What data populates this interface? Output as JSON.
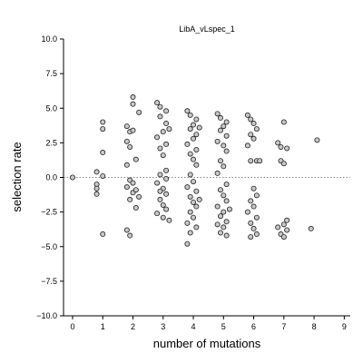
{
  "chart_data": {
    "type": "scatter",
    "title": "LibA_vLspec_1",
    "xlabel": "number of mutations",
    "ylabel": "selection rate",
    "xlim": [
      -0.3,
      9.2
    ],
    "ylim": [
      -10.0,
      10.0
    ],
    "x_ticks": [
      "0",
      "1",
      "2",
      "3",
      "4",
      "5",
      "6",
      "7",
      "8",
      "9"
    ],
    "y_ticks": [
      "10.0",
      "7.5",
      "5.0",
      "2.5",
      "0.0",
      "−2.5",
      "−5.0",
      "−7.5",
      "−10.0"
    ],
    "reference_line": {
      "y": 0.0,
      "style": "dotted",
      "color": "#888888"
    },
    "marker": {
      "fill": "#c8c8c8",
      "edge": "#222222"
    },
    "series": [
      {
        "points": [
          [
            0.0,
            0.0
          ],
          [
            0.8,
            0.4
          ],
          [
            0.8,
            -0.5
          ],
          [
            0.8,
            -0.8
          ],
          [
            0.8,
            -1.2
          ],
          [
            1.0,
            1.8
          ],
          [
            1.0,
            3.5
          ],
          [
            1.0,
            4.0
          ],
          [
            1.0,
            0.1
          ],
          [
            1.0,
            -4.1
          ],
          [
            1.8,
            3.7
          ],
          [
            1.9,
            3.3
          ],
          [
            1.8,
            2.6
          ],
          [
            1.9,
            2.2
          ],
          [
            1.8,
            0.9
          ],
          [
            2.0,
            5.8
          ],
          [
            2.0,
            5.3
          ],
          [
            2.2,
            4.7
          ],
          [
            2.0,
            3.4
          ],
          [
            2.1,
            1.3
          ],
          [
            1.9,
            -0.2
          ],
          [
            2.0,
            -0.4
          ],
          [
            1.8,
            -0.7
          ],
          [
            2.0,
            -1.1
          ],
          [
            1.9,
            -1.6
          ],
          [
            2.1,
            -2.2
          ],
          [
            1.8,
            -3.8
          ],
          [
            1.9,
            -4.2
          ],
          [
            2.1,
            -0.9
          ],
          [
            2.2,
            -1.4
          ],
          [
            2.8,
            5.4
          ],
          [
            2.9,
            5.1
          ],
          [
            3.1,
            4.8
          ],
          [
            2.9,
            4.4
          ],
          [
            3.1,
            3.9
          ],
          [
            3.0,
            3.3
          ],
          [
            2.8,
            2.9
          ],
          [
            3.1,
            2.4
          ],
          [
            2.9,
            2.1
          ],
          [
            3.0,
            1.6
          ],
          [
            3.1,
            0.5
          ],
          [
            2.9,
            0.2
          ],
          [
            2.8,
            -0.4
          ],
          [
            3.0,
            -0.8
          ],
          [
            3.1,
            -1.2
          ],
          [
            2.9,
            -1.6
          ],
          [
            3.0,
            -2.0
          ],
          [
            3.1,
            -2.3
          ],
          [
            2.8,
            -2.6
          ],
          [
            3.0,
            -2.9
          ],
          [
            3.2,
            -3.1
          ],
          [
            2.9,
            -1.0
          ],
          [
            3.1,
            -0.1
          ],
          [
            3.2,
            3.5
          ],
          [
            3.8,
            4.8
          ],
          [
            3.9,
            4.5
          ],
          [
            4.1,
            4.2
          ],
          [
            4.0,
            3.8
          ],
          [
            3.9,
            3.5
          ],
          [
            4.1,
            3.1
          ],
          [
            4.0,
            2.8
          ],
          [
            3.8,
            2.4
          ],
          [
            4.1,
            2.0
          ],
          [
            3.9,
            1.7
          ],
          [
            4.0,
            1.3
          ],
          [
            4.1,
            0.9
          ],
          [
            3.9,
            0.2
          ],
          [
            4.0,
            -0.3
          ],
          [
            3.8,
            -0.7
          ],
          [
            4.1,
            -1.0
          ],
          [
            3.9,
            -1.4
          ],
          [
            4.0,
            -1.8
          ],
          [
            4.1,
            -2.1
          ],
          [
            3.9,
            -2.5
          ],
          [
            4.0,
            -2.9
          ],
          [
            3.8,
            -3.3
          ],
          [
            4.1,
            -3.6
          ],
          [
            3.9,
            -4.0
          ],
          [
            3.8,
            -4.8
          ],
          [
            4.2,
            -1.6
          ],
          [
            4.2,
            3.6
          ],
          [
            4.8,
            4.6
          ],
          [
            4.9,
            4.3
          ],
          [
            5.1,
            4.0
          ],
          [
            5.0,
            3.7
          ],
          [
            4.9,
            3.4
          ],
          [
            5.1,
            3.0
          ],
          [
            4.8,
            2.6
          ],
          [
            5.0,
            2.3
          ],
          [
            5.1,
            1.9
          ],
          [
            4.9,
            1.2
          ],
          [
            5.0,
            0.8
          ],
          [
            4.8,
            0.3
          ],
          [
            5.1,
            -0.5
          ],
          [
            4.9,
            -0.9
          ],
          [
            5.0,
            -1.3
          ],
          [
            5.1,
            -1.7
          ],
          [
            4.8,
            -2.1
          ],
          [
            5.0,
            -2.5
          ],
          [
            4.9,
            -2.8
          ],
          [
            5.1,
            -3.2
          ],
          [
            5.0,
            -3.6
          ],
          [
            4.9,
            -4.0
          ],
          [
            5.1,
            -4.2
          ],
          [
            5.2,
            -2.3
          ],
          [
            4.8,
            -3.4
          ],
          [
            5.8,
            4.5
          ],
          [
            5.9,
            4.2
          ],
          [
            6.0,
            3.9
          ],
          [
            6.1,
            3.5
          ],
          [
            5.9,
            3.1
          ],
          [
            6.0,
            2.8
          ],
          [
            5.8,
            2.3
          ],
          [
            6.1,
            1.2
          ],
          [
            5.9,
            1.2
          ],
          [
            6.0,
            -0.8
          ],
          [
            6.1,
            -1.3
          ],
          [
            5.9,
            -1.7
          ],
          [
            6.0,
            -2.1
          ],
          [
            5.8,
            -2.5
          ],
          [
            6.1,
            -2.9
          ],
          [
            5.9,
            -3.3
          ],
          [
            6.0,
            -3.7
          ],
          [
            6.1,
            -4.1
          ],
          [
            5.9,
            -4.3
          ],
          [
            6.2,
            1.2
          ],
          [
            6.8,
            2.5
          ],
          [
            6.9,
            2.2
          ],
          [
            7.0,
            4.0
          ],
          [
            7.1,
            2.1
          ],
          [
            6.9,
            1.2
          ],
          [
            7.0,
            1.0
          ],
          [
            6.8,
            -3.6
          ],
          [
            7.0,
            -3.4
          ],
          [
            7.1,
            -3.1
          ],
          [
            6.9,
            -4.1
          ],
          [
            7.0,
            -4.3
          ],
          [
            7.1,
            -3.8
          ],
          [
            8.1,
            2.7
          ],
          [
            7.9,
            -3.7
          ]
        ]
      }
    ]
  }
}
